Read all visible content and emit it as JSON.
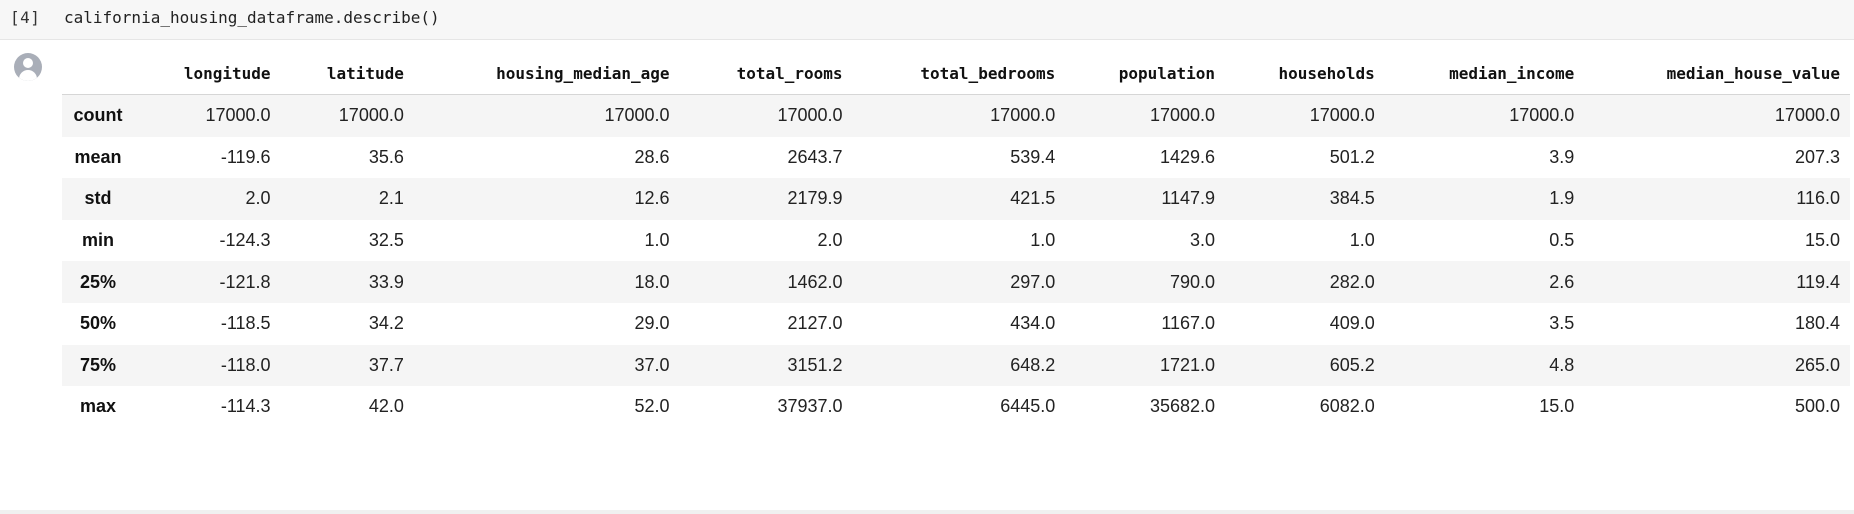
{
  "cell": {
    "execution_count": "[4]",
    "code": "california_housing_dataframe.describe()"
  },
  "table": {
    "columns": [
      "longitude",
      "latitude",
      "housing_median_age",
      "total_rooms",
      "total_bedrooms",
      "population",
      "households",
      "median_income",
      "median_house_value"
    ],
    "rows": [
      {
        "label": "count",
        "values": [
          "17000.0",
          "17000.0",
          "17000.0",
          "17000.0",
          "17000.0",
          "17000.0",
          "17000.0",
          "17000.0",
          "17000.0"
        ]
      },
      {
        "label": "mean",
        "values": [
          "-119.6",
          "35.6",
          "28.6",
          "2643.7",
          "539.4",
          "1429.6",
          "501.2",
          "3.9",
          "207.3"
        ]
      },
      {
        "label": "std",
        "values": [
          "2.0",
          "2.1",
          "12.6",
          "2179.9",
          "421.5",
          "1147.9",
          "384.5",
          "1.9",
          "116.0"
        ]
      },
      {
        "label": "min",
        "values": [
          "-124.3",
          "32.5",
          "1.0",
          "2.0",
          "1.0",
          "3.0",
          "1.0",
          "0.5",
          "15.0"
        ]
      },
      {
        "label": "25%",
        "values": [
          "-121.8",
          "33.9",
          "18.0",
          "1462.0",
          "297.0",
          "790.0",
          "282.0",
          "2.6",
          "119.4"
        ]
      },
      {
        "label": "50%",
        "values": [
          "-118.5",
          "34.2",
          "29.0",
          "2127.0",
          "434.0",
          "1167.0",
          "409.0",
          "3.5",
          "180.4"
        ]
      },
      {
        "label": "75%",
        "values": [
          "-118.0",
          "37.7",
          "37.0",
          "3151.2",
          "648.2",
          "1721.0",
          "605.2",
          "4.8",
          "265.0"
        ]
      },
      {
        "label": "max",
        "values": [
          "-114.3",
          "42.0",
          "52.0",
          "37937.0",
          "6445.0",
          "35682.0",
          "6082.0",
          "15.0",
          "500.0"
        ]
      }
    ]
  },
  "icons": {
    "avatar": "user-avatar-icon"
  },
  "colors": {
    "code_cell_bg": "#f7f7f7",
    "striped_row_bg": "#f5f5f5",
    "avatar_bg": "#a9aeb8"
  }
}
